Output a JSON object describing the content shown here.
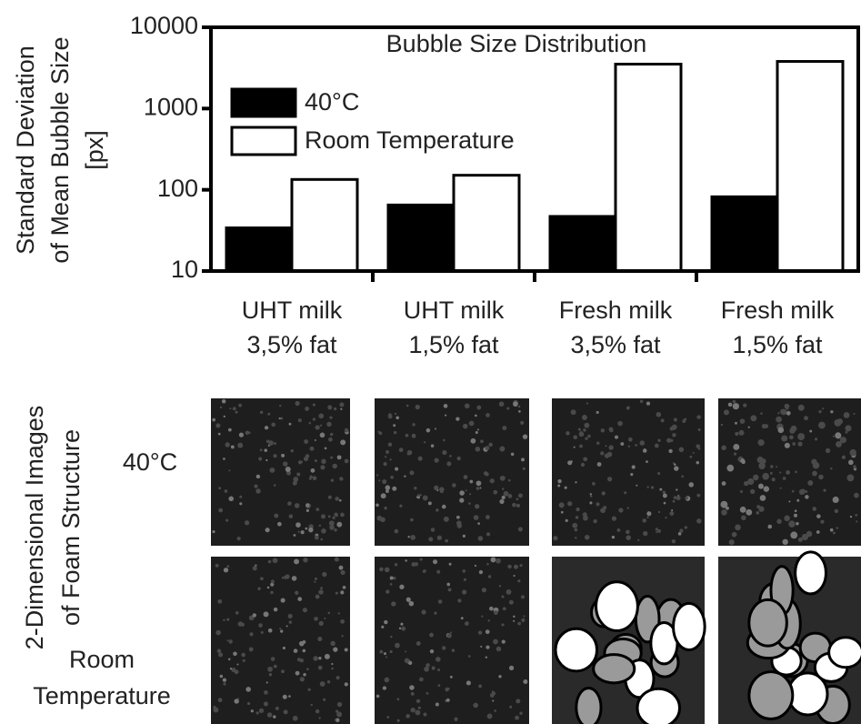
{
  "chart_data": {
    "type": "bar",
    "title": "Bubble Size Distribution",
    "y_label": "Standard Deviation\nof Mean Bubble Size\n[px]",
    "categories": [
      "UHT milk\n3,5% fat",
      "UHT milk\n1,5% fat",
      "Fresh milk\n3,5% fat",
      "Fresh milk\n1,5% fat"
    ],
    "series": [
      {
        "name": "40°C",
        "color": "#000000",
        "values": [
          34,
          65,
          47,
          82
        ]
      },
      {
        "name": "Room Temperature",
        "color": "#ffffff",
        "values": [
          134,
          151,
          3520,
          3800
        ]
      }
    ],
    "ylim": [
      10,
      10000
    ],
    "yticks": [
      10,
      100,
      1000,
      10000
    ],
    "log_scale": true,
    "legend": "upper left"
  },
  "images": {
    "title": "2-Dimensional Images\nof Foam Structure",
    "rows": [
      "40°C",
      "Room\nTemperature"
    ]
  }
}
